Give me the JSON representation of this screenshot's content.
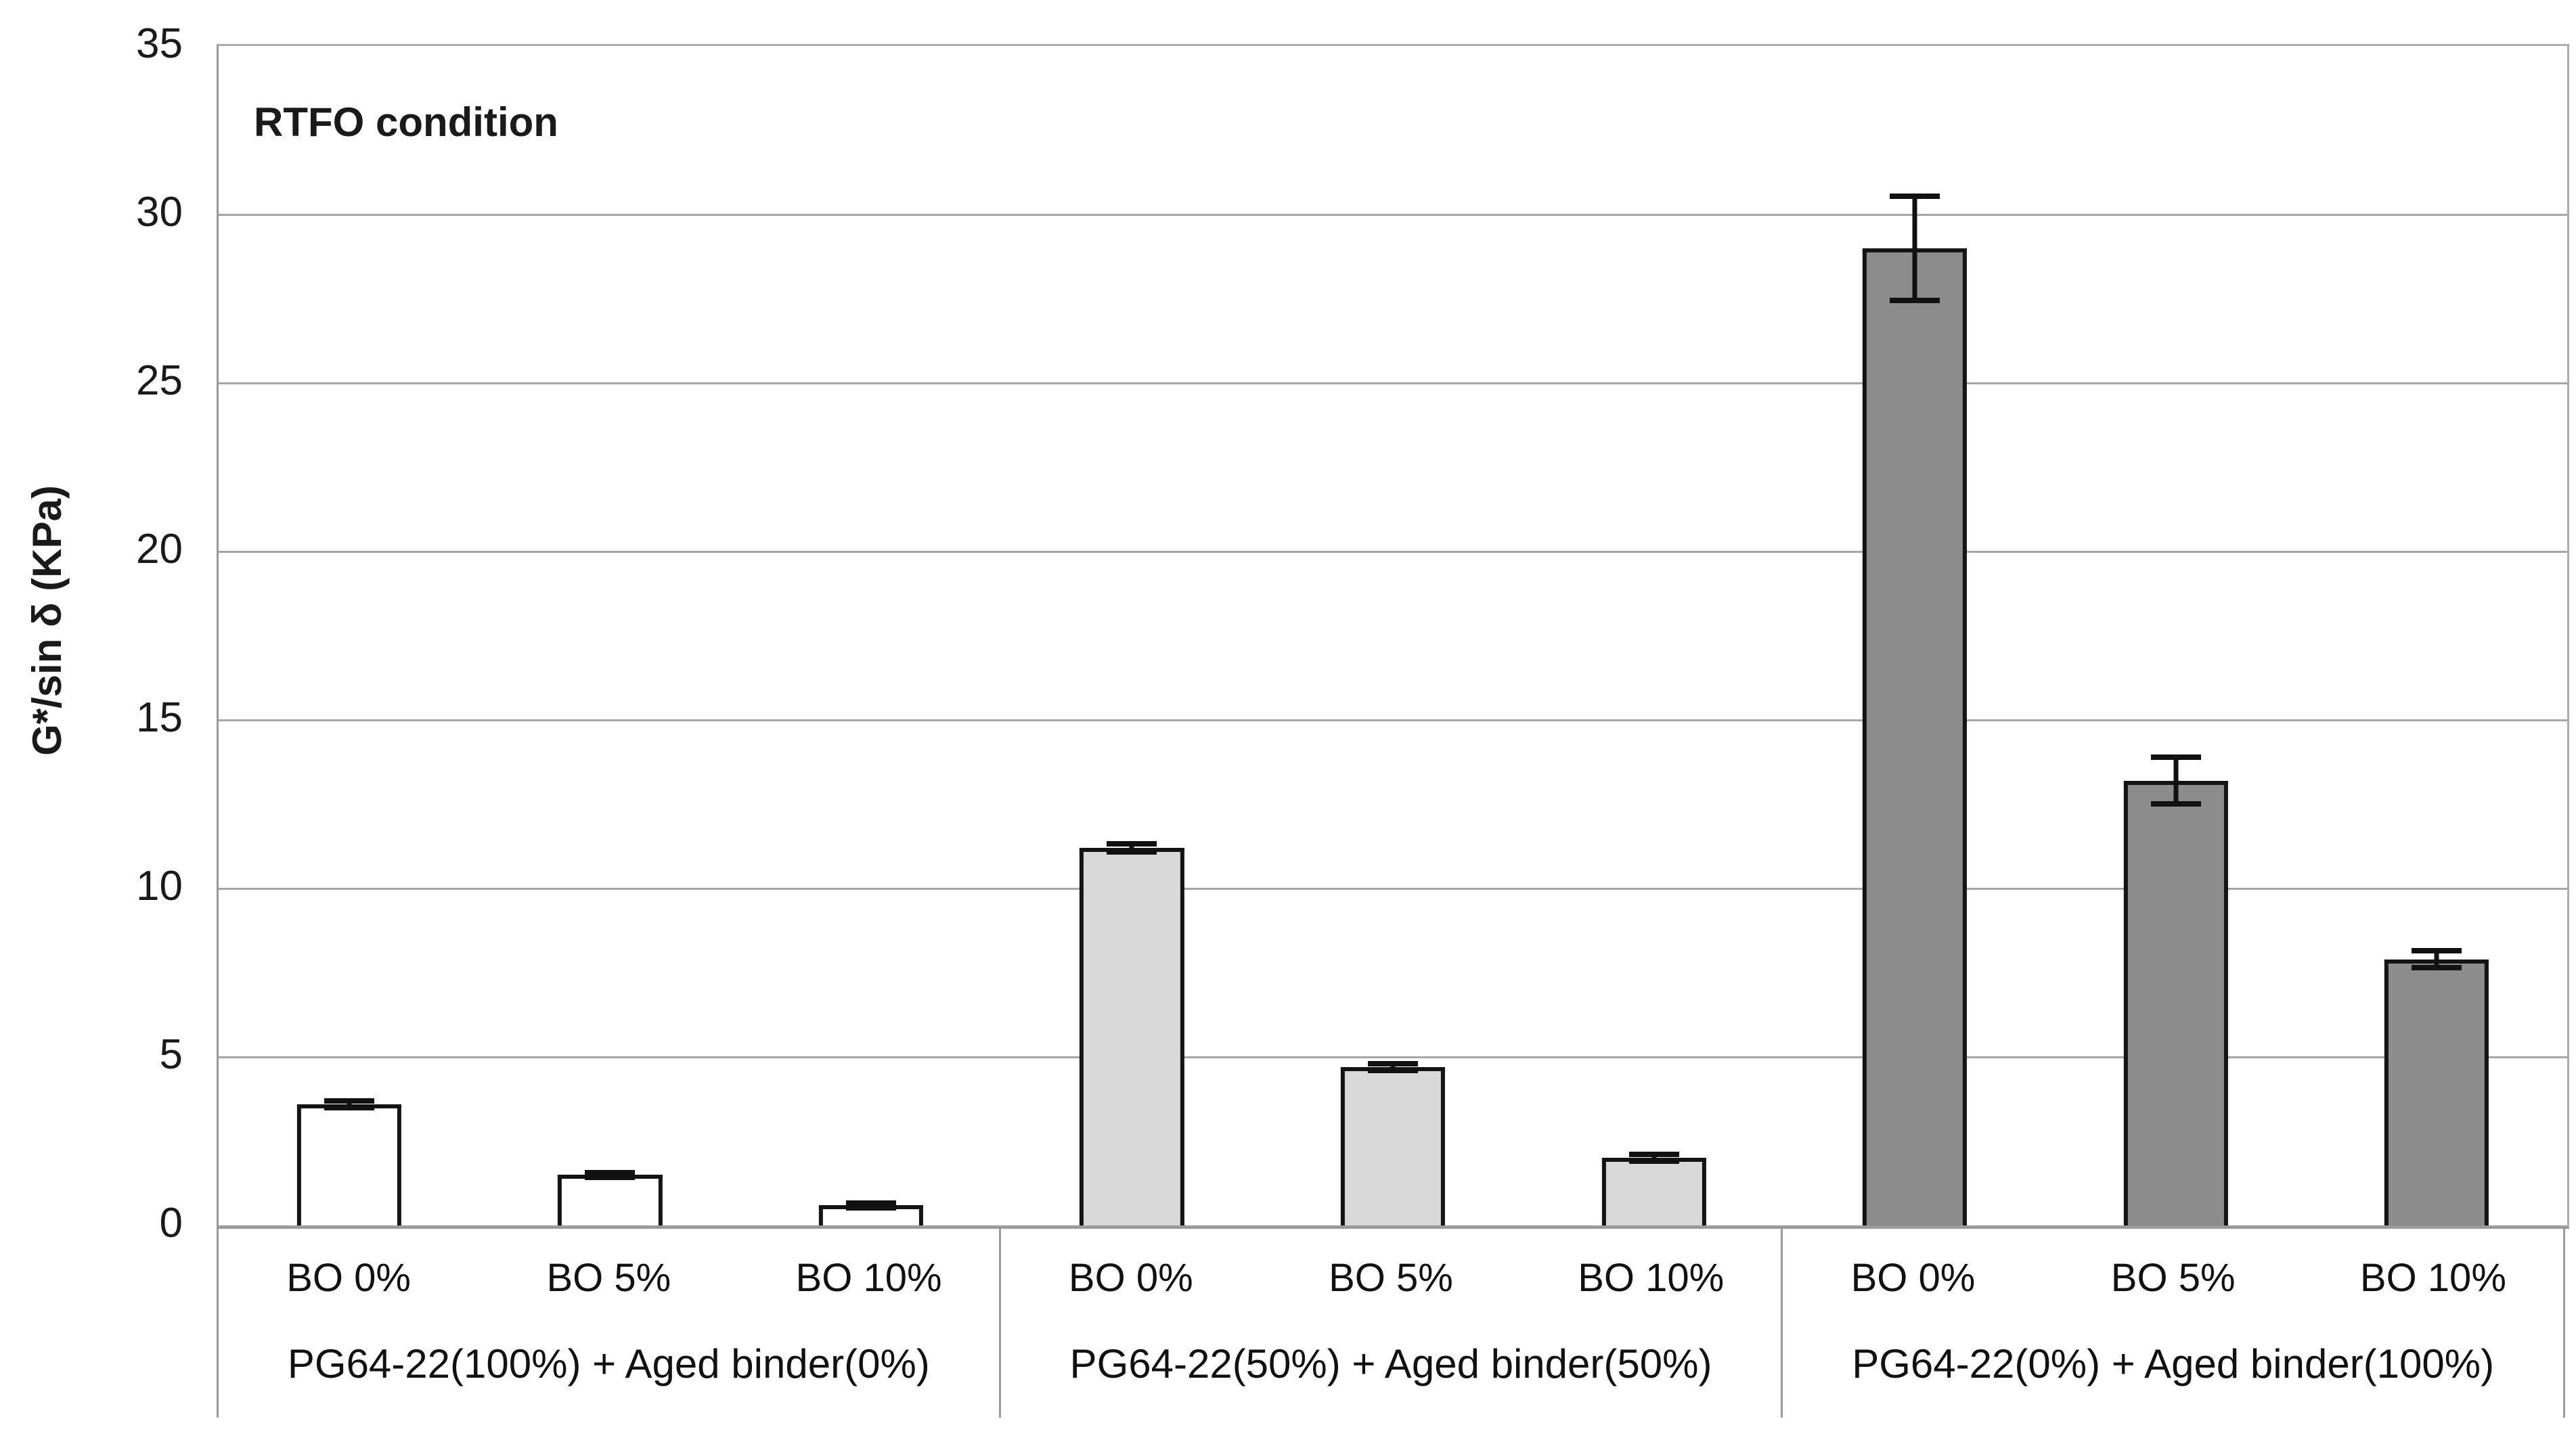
{
  "chart_data": {
    "type": "bar",
    "annotation": "RTFO condition",
    "ylabel": "G*/sin δ (KPa)",
    "ylim": [
      0,
      35
    ],
    "yticks": [
      0,
      5,
      10,
      15,
      20,
      25,
      30,
      35
    ],
    "gridlines": [
      5,
      10,
      15,
      20,
      25,
      30
    ],
    "grid": "horizontal",
    "legend": "none",
    "categories": [
      "BO 0%",
      "BO 5%",
      "BO 10%"
    ],
    "groups": [
      {
        "label": "PG64-22(100%) + Aged binder(0%)",
        "color": "#ffffff",
        "bars": [
          {
            "category": "BO 0%",
            "value": 3.6,
            "error": 0.1
          },
          {
            "category": "BO 5%",
            "value": 1.5,
            "error": 0.07
          },
          {
            "category": "BO 10%",
            "value": 0.6,
            "error": 0.07
          }
        ]
      },
      {
        "label": "PG64-22(50%) + Aged binder(50%)",
        "color": "#d9d9d9",
        "bars": [
          {
            "category": "BO 0%",
            "value": 11.2,
            "error": 0.12
          },
          {
            "category": "BO 5%",
            "value": 4.7,
            "error": 0.1
          },
          {
            "category": "BO 10%",
            "value": 2.0,
            "error": 0.1
          }
        ]
      },
      {
        "label": "PG64-22(0%) + Aged binder(100%)",
        "color": "#8c8c8c",
        "bars": [
          {
            "category": "BO 0%",
            "value": 29.0,
            "error": 1.55
          },
          {
            "category": "BO 5%",
            "value": 13.2,
            "error": 0.7
          },
          {
            "category": "BO 10%",
            "value": 7.9,
            "error": 0.25
          }
        ]
      }
    ],
    "colors": {
      "bar_border": "#141414",
      "gridline": "#a6a6a6",
      "axis": "#9b9b9b",
      "text": "#1a1a1a"
    }
  }
}
